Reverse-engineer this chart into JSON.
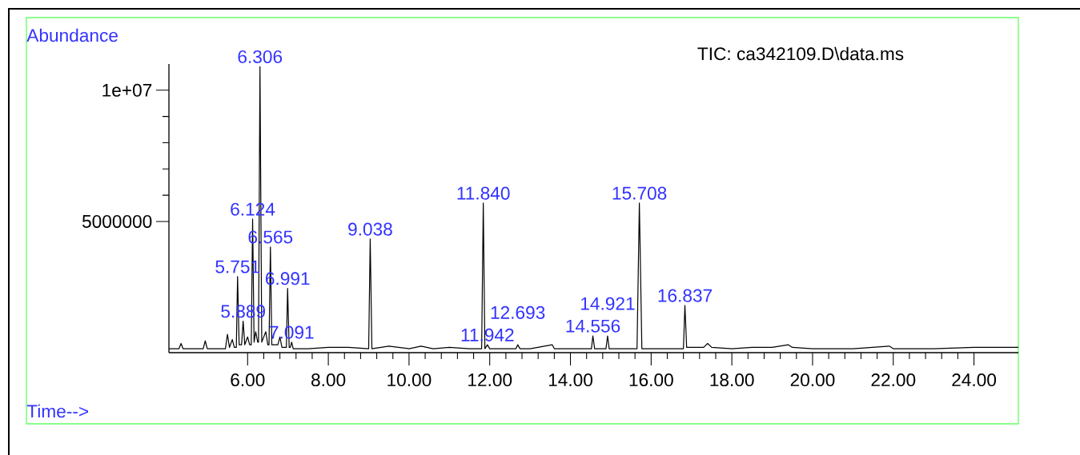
{
  "chart_data": {
    "type": "line",
    "title": "TIC: ca342109.D\\data.ms",
    "xlabel": "Time-->",
    "ylabel": "Abundance",
    "x": [
      4.05,
      4.3,
      4.35,
      4.4,
      4.9,
      4.95,
      5.0,
      5.45,
      5.5,
      5.55,
      5.62,
      5.67,
      5.72,
      5.751,
      5.79,
      5.85,
      5.889,
      5.93,
      6.0,
      6.05,
      6.09,
      6.124,
      6.16,
      6.2,
      6.25,
      6.27,
      6.306,
      6.35,
      6.45,
      6.5,
      6.53,
      6.565,
      6.6,
      6.75,
      6.8,
      6.85,
      6.96,
      6.991,
      7.03,
      7.06,
      7.091,
      7.13,
      7.5,
      8.0,
      8.5,
      9.0,
      9.038,
      9.08,
      9.5,
      10.0,
      10.3,
      10.6,
      11.0,
      11.5,
      11.8,
      11.84,
      11.88,
      11.942,
      12.0,
      12.65,
      12.693,
      12.75,
      13.0,
      13.55,
      13.6,
      14.0,
      14.52,
      14.556,
      14.6,
      14.88,
      14.921,
      14.96,
      15.65,
      15.708,
      15.77,
      16.8,
      16.837,
      16.88,
      17.3,
      17.4,
      17.5,
      18.0,
      18.5,
      19.0,
      19.4,
      19.5,
      20.0,
      21.0,
      21.9,
      22.0,
      23.0,
      24.0,
      25.1
    ],
    "values": [
      150000,
      150000,
      350000,
      150000,
      150000,
      450000,
      150000,
      150000,
      700000,
      200000,
      500000,
      200000,
      200000,
      2900000,
      300000,
      300000,
      1200000,
      300000,
      600000,
      300000,
      300000,
      5090000,
      400000,
      800000,
      400000,
      400000,
      10900000,
      400000,
      800000,
      300000,
      300000,
      4030000,
      300000,
      300000,
      600000,
      200000,
      200000,
      2450000,
      200000,
      200000,
      400000,
      150000,
      150000,
      200000,
      200000,
      150000,
      4330000,
      150000,
      250000,
      150000,
      250000,
      150000,
      200000,
      150000,
      150000,
      5700000,
      150000,
      300000,
      150000,
      150000,
      300000,
      150000,
      150000,
      300000,
      150000,
      150000,
      150000,
      640000,
      150000,
      150000,
      640000,
      150000,
      150000,
      5700000,
      150000,
      150000,
      1800000,
      200000,
      200000,
      350000,
      200000,
      150000,
      200000,
      200000,
      300000,
      200000,
      150000,
      150000,
      250000,
      150000,
      150000,
      200000,
      200000
    ],
    "color": "#000000",
    "xlim": [
      4.05,
      25.1
    ],
    "ylim": [
      0,
      11000000
    ],
    "xticks": [
      {
        "value": 6,
        "label": "6.00"
      },
      {
        "value": 8,
        "label": "8.00"
      },
      {
        "value": 10,
        "label": "10.00"
      },
      {
        "value": 12,
        "label": "12.00"
      },
      {
        "value": 14,
        "label": "14.00"
      },
      {
        "value": 16,
        "label": "16.00"
      },
      {
        "value": 18,
        "label": "18.00"
      },
      {
        "value": 20,
        "label": "20.00"
      },
      {
        "value": 22,
        "label": "22.00"
      },
      {
        "value": 24,
        "label": "24.00"
      }
    ],
    "yticks": [
      5000000,
      {
        "value": 10000000,
        "label": "1e+07"
      }
    ],
    "annotations": [
      {
        "text": "5.751",
        "x": 5.751,
        "y": 2900000
      },
      {
        "text": "5.889",
        "x": 5.889,
        "y": 1200000
      },
      {
        "text": "6.124",
        "x": 6.124,
        "y": 5090000
      },
      {
        "text": "6.306",
        "x": 6.306,
        "y": 10900000
      },
      {
        "text": "6.565",
        "x": 6.565,
        "y": 4030000
      },
      {
        "text": "6.991",
        "x": 6.991,
        "y": 2450000
      },
      {
        "text": "7.091",
        "x": 7.091,
        "y": 400000
      },
      {
        "text": "9.038",
        "x": 9.038,
        "y": 4330000
      },
      {
        "text": "11.840",
        "x": 11.84,
        "y": 5700000
      },
      {
        "text": "11.942",
        "x": 11.942,
        "y": 300000
      },
      {
        "text": "12.693",
        "x": 12.693,
        "y": 300000
      },
      {
        "text": "14.556",
        "x": 14.556,
        "y": 640000
      },
      {
        "text": "14.921",
        "x": 14.921,
        "y": 640000
      },
      {
        "text": "15.708",
        "x": 15.708,
        "y": 5700000
      },
      {
        "text": "16.837",
        "x": 16.837,
        "y": 1800000
      }
    ]
  }
}
